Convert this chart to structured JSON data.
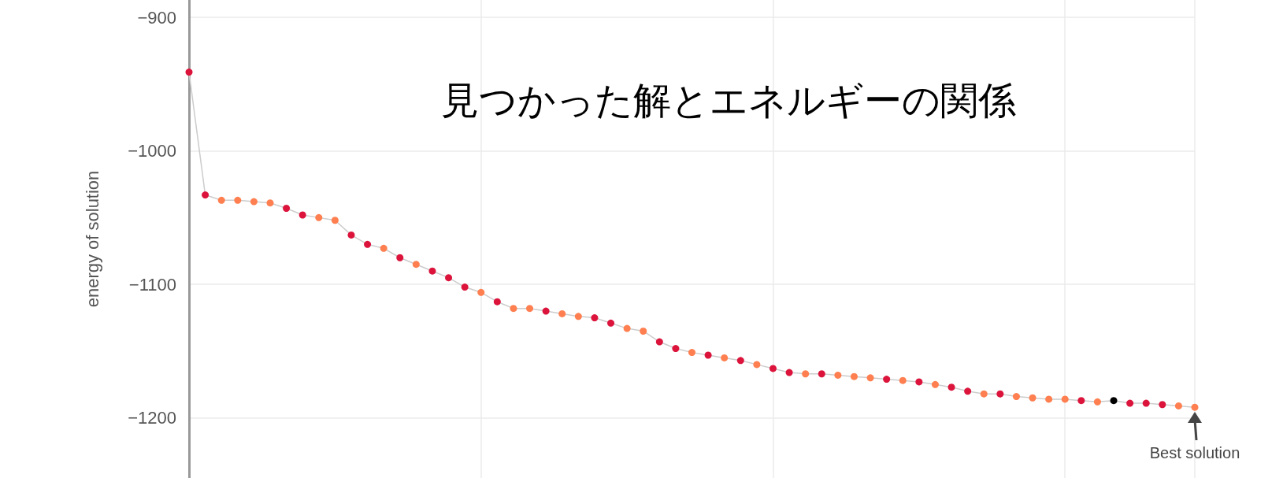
{
  "chart_data": {
    "type": "line",
    "title": "見つかった解とエネルギーの関係",
    "ylabel": "energy of solution",
    "categories": [
      null,
      null,
      null,
      null,
      null,
      null,
      null,
      null,
      null,
      null,
      null,
      null,
      null,
      null,
      null,
      null,
      null,
      null,
      null,
      null,
      null,
      null,
      null,
      null,
      null,
      null,
      null,
      null,
      null,
      null,
      null,
      null,
      null,
      null,
      null,
      null,
      null,
      null,
      null,
      null,
      null,
      null,
      null,
      null,
      null,
      null,
      null,
      null,
      null,
      null,
      null,
      null,
      null,
      null,
      null,
      null,
      null,
      null,
      null,
      null,
      null,
      null,
      null
    ],
    "ylim": [
      -1245,
      -887
    ],
    "yticks": [
      -900,
      -1000,
      -1100,
      -1200
    ],
    "grid": true,
    "tick_labels": "y",
    "marker": "circle",
    "annotations": [
      {
        "text": "Best solution",
        "y": -1192
      }
    ],
    "series": [
      {
        "color": "#cccccc",
        "values": [
          -941,
          -1033,
          -1037,
          -1037,
          -1038,
          -1039,
          -1043,
          -1048,
          -1050,
          -1052,
          -1063,
          -1070,
          -1073,
          -1080,
          -1085,
          -1090,
          -1095,
          -1102,
          -1106,
          -1113,
          -1118,
          -1118,
          -1120,
          -1122,
          -1124,
          -1125,
          -1129,
          -1133,
          -1135,
          -1143,
          -1148,
          -1151,
          -1153,
          -1155,
          -1157,
          -1160,
          -1163,
          -1166,
          -1167,
          -1167,
          -1168,
          -1169,
          -1170,
          -1171,
          -1172,
          -1173,
          -1175,
          -1177,
          -1180,
          -1182,
          -1182,
          -1184,
          -1185,
          -1186,
          -1186,
          -1187,
          -1188,
          -1187,
          -1189,
          -1189,
          -1190,
          -1191,
          -1192
        ],
        "colors": [
          "#dc143c",
          "#dc143c",
          "#ff7f50",
          "#ff7f50",
          "#ff7f50",
          "#ff7f50",
          "#dc143c",
          "#dc143c",
          "#ff7f50",
          "#ff7f50",
          "#dc143c",
          "#dc143c",
          "#ff7f50",
          "#dc143c",
          "#ff7f50",
          "#dc143c",
          "#dc143c",
          "#dc143c",
          "#ff7f50",
          "#dc143c",
          "#ff7f50",
          "#ff7f50",
          "#dc143c",
          "#ff7f50",
          "#ff7f50",
          "#dc143c",
          "#dc143c",
          "#ff7f50",
          "#ff7f50",
          "#dc143c",
          "#dc143c",
          "#ff7f50",
          "#dc143c",
          "#ff7f50",
          "#dc143c",
          "#ff7f50",
          "#dc143c",
          "#dc143c",
          "#ff7f50",
          "#dc143c",
          "#ff7f50",
          "#ff7f50",
          "#ff7f50",
          "#dc143c",
          "#ff7f50",
          "#dc143c",
          "#ff7f50",
          "#dc143c",
          "#dc143c",
          "#ff7f50",
          "#dc143c",
          "#ff7f50",
          "#ff7f50",
          "#ff7f50",
          "#ff7f50",
          "#dc143c",
          "#ff7f50",
          "#000000",
          "#dc143c",
          "#dc143c",
          "#dc143c",
          "#ff7f50",
          "#ff7f50"
        ]
      }
    ]
  }
}
